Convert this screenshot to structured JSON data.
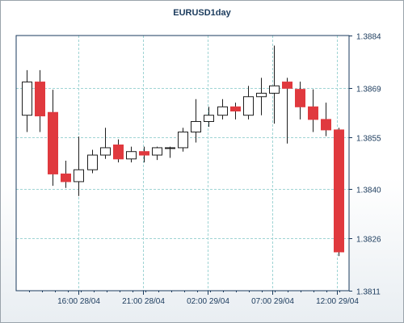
{
  "chart_data": {
    "type": "candlestick",
    "title": "EURUSD1day",
    "x_ticks": [
      "16:00 28/04",
      "21:00 28/04",
      "02:00 29/04",
      "07:00 29/04",
      "12:00 29/04"
    ],
    "y_ticks": [
      "1.3884",
      "1.3869",
      "1.3855",
      "1.3840",
      "1.3826",
      "1.3811"
    ],
    "y_tick_values": [
      1.3884,
      1.3869,
      1.3855,
      1.384,
      1.3826,
      1.3811
    ],
    "ylim": [
      1.3811,
      1.3884
    ],
    "grid": true,
    "colors": {
      "bull_fill": "#ffffff",
      "bear_fill": "#e0393e",
      "border": "#1e1e1e",
      "grid": "#9fd4d4",
      "axis": "#1a3a5c"
    },
    "candles": [
      {
        "open": 1.38612,
        "high": 1.38741,
        "low": 1.38564,
        "close": 1.38707
      },
      {
        "open": 1.38707,
        "high": 1.38741,
        "low": 1.38564,
        "close": 1.3861
      },
      {
        "open": 1.3862,
        "high": 1.38685,
        "low": 1.3841,
        "close": 1.38444
      },
      {
        "open": 1.38444,
        "high": 1.38482,
        "low": 1.38404,
        "close": 1.38422
      },
      {
        "open": 1.38422,
        "high": 1.38551,
        "low": 1.38381,
        "close": 1.38456
      },
      {
        "open": 1.38456,
        "high": 1.38513,
        "low": 1.38446,
        "close": 1.38498
      },
      {
        "open": 1.38498,
        "high": 1.38576,
        "low": 1.38487,
        "close": 1.38519
      },
      {
        "open": 1.38527,
        "high": 1.38543,
        "low": 1.38477,
        "close": 1.38487
      },
      {
        "open": 1.38487,
        "high": 1.38522,
        "low": 1.38477,
        "close": 1.38508
      },
      {
        "open": 1.38508,
        "high": 1.38522,
        "low": 1.38477,
        "close": 1.38498
      },
      {
        "open": 1.38498,
        "high": 1.38522,
        "low": 1.38484,
        "close": 1.38519
      },
      {
        "open": 1.38519,
        "high": 1.38522,
        "low": 1.3849,
        "close": 1.38519
      },
      {
        "open": 1.38519,
        "high": 1.38576,
        "low": 1.38508,
        "close": 1.38564
      },
      {
        "open": 1.38564,
        "high": 1.38658,
        "low": 1.38534,
        "close": 1.38594
      },
      {
        "open": 1.38594,
        "high": 1.38636,
        "low": 1.38579,
        "close": 1.38612
      },
      {
        "open": 1.38612,
        "high": 1.38658,
        "low": 1.386,
        "close": 1.38636
      },
      {
        "open": 1.38636,
        "high": 1.38648,
        "low": 1.386,
        "close": 1.38624
      },
      {
        "open": 1.38612,
        "high": 1.38696,
        "low": 1.386,
        "close": 1.38665
      },
      {
        "open": 1.38665,
        "high": 1.38719,
        "low": 1.38612,
        "close": 1.38675
      },
      {
        "open": 1.38675,
        "high": 1.38811,
        "low": 1.38588,
        "close": 1.38696
      },
      {
        "open": 1.38707,
        "high": 1.38719,
        "low": 1.38531,
        "close": 1.38689
      },
      {
        "open": 1.38686,
        "high": 1.38708,
        "low": 1.386,
        "close": 1.38636
      },
      {
        "open": 1.38636,
        "high": 1.38686,
        "low": 1.38564,
        "close": 1.386
      },
      {
        "open": 1.386,
        "high": 1.38648,
        "low": 1.38552,
        "close": 1.3857
      },
      {
        "open": 1.3857,
        "high": 1.38576,
        "low": 1.38209,
        "close": 1.38221
      }
    ]
  }
}
